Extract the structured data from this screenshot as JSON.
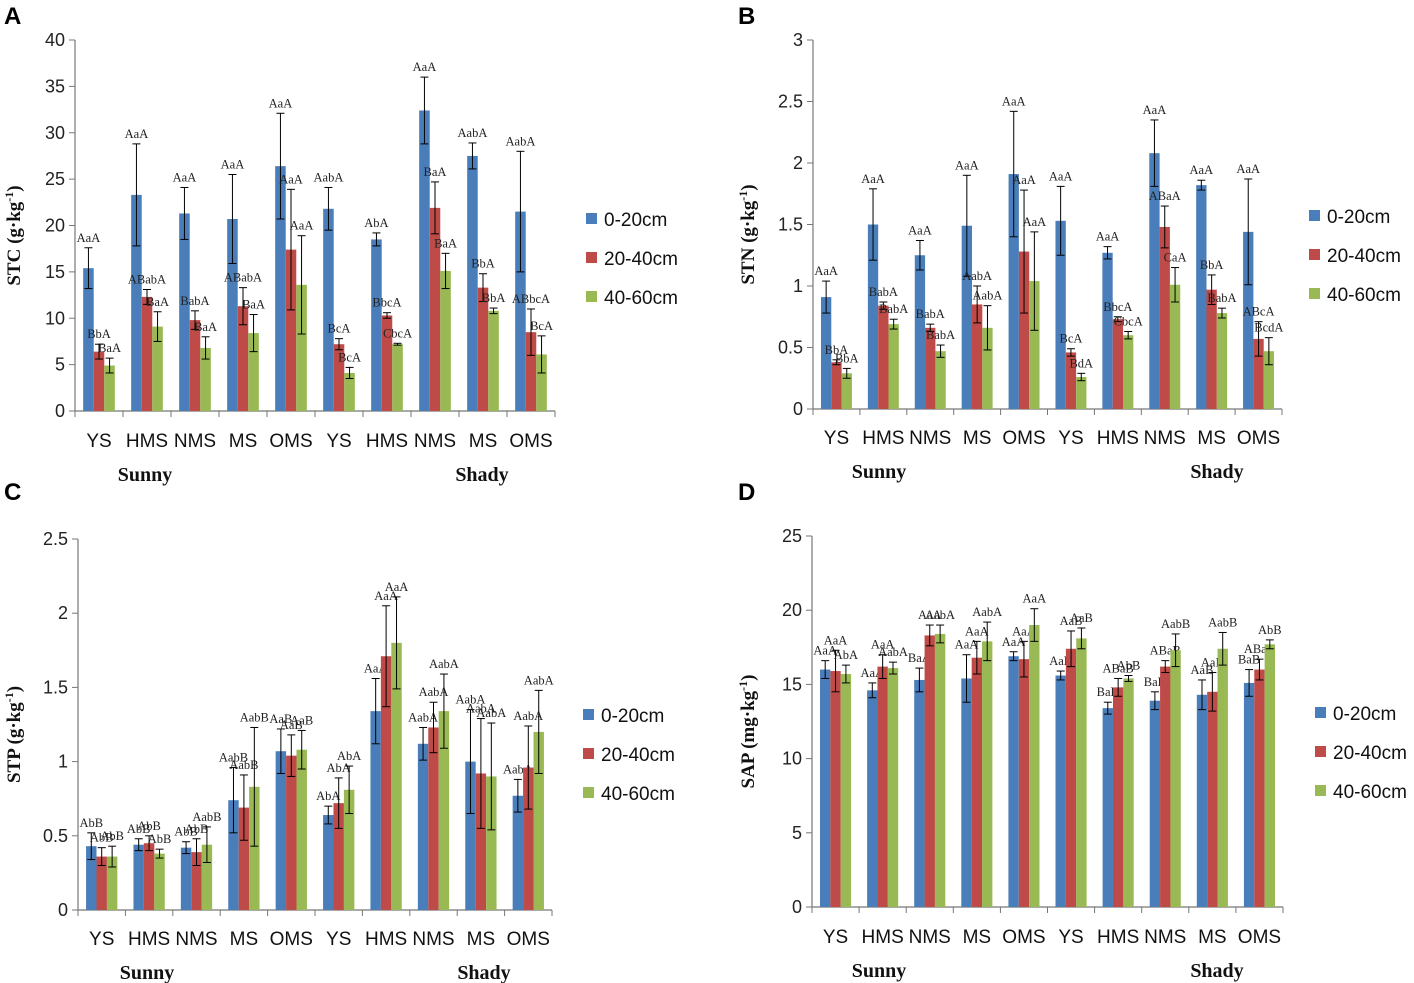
{
  "figure": {
    "categories": [
      "YS",
      "HMS",
      "NMS",
      "MS",
      "OMS",
      "YS",
      "HMS",
      "NMS",
      "MS",
      "OMS"
    ],
    "groups": [
      "Sunny",
      "Shady"
    ],
    "series_names": [
      "0-20cm",
      "20-40cm",
      "40-60cm"
    ],
    "colors": {
      "s0": "#4a7ebb",
      "s1": "#be4b48",
      "s2": "#98b954"
    }
  },
  "chart_data": [
    {
      "panel": "A",
      "type": "bar",
      "ylabel": "STC (g·kg",
      "ylabel_sup": "-1",
      "ylabel_close": ")",
      "ylim": [
        0,
        40
      ],
      "yticks": [
        "0",
        "5",
        "10",
        "15",
        "20",
        "25",
        "30",
        "35",
        "40"
      ],
      "categories": [
        "YS",
        "HMS",
        "NMS",
        "MS",
        "OMS",
        "YS",
        "HMS",
        "NMS",
        "MS",
        "OMS"
      ],
      "groups": [
        "Sunny",
        "Shady"
      ],
      "series": [
        {
          "name": "0-20cm",
          "values": [
            15.4,
            23.3,
            21.3,
            20.7,
            26.4,
            21.8,
            18.5,
            32.4,
            27.5,
            21.5
          ],
          "errors": [
            2.2,
            5.5,
            2.8,
            4.8,
            5.7,
            2.3,
            0.7,
            3.6,
            1.4,
            6.5
          ],
          "labels": [
            "AaA",
            "AaA",
            "AaA",
            "AaA",
            "AaA",
            "AabA",
            "AbA",
            "AaA",
            "AabA",
            "AabA"
          ]
        },
        {
          "name": "20-40cm",
          "values": [
            6.4,
            12.3,
            9.8,
            11.3,
            17.4,
            7.2,
            10.3,
            21.9,
            13.3,
            8.5
          ],
          "errors": [
            0.8,
            0.8,
            1.0,
            2.0,
            6.5,
            0.6,
            0.3,
            2.8,
            1.5,
            2.5
          ],
          "labels": [
            "BbA",
            "ABabA",
            "BabA",
            "ABabA",
            "AaA",
            "BcA",
            "BbcA",
            "BaA",
            "BbA",
            "ABbcA"
          ]
        },
        {
          "name": "40-60cm",
          "values": [
            4.9,
            9.1,
            6.8,
            8.4,
            13.6,
            4.1,
            7.2,
            15.1,
            10.8,
            6.1
          ],
          "errors": [
            0.8,
            1.6,
            1.2,
            2.0,
            5.3,
            0.6,
            0.1,
            1.9,
            0.3,
            2.0
          ],
          "labels": [
            "BaA",
            "BaA",
            "BaA",
            "BaA",
            "AaA",
            "BcA",
            "CbcA",
            "BaA",
            "BbA",
            "BcA"
          ]
        }
      ]
    },
    {
      "panel": "B",
      "type": "bar",
      "ylabel": "STN (g·kg",
      "ylabel_sup": "-1",
      "ylabel_close": ")",
      "ylim": [
        0,
        3
      ],
      "yticks": [
        "0",
        "0.5",
        "1",
        "1.5",
        "2",
        "2.5",
        "3"
      ],
      "categories": [
        "YS",
        "HMS",
        "NMS",
        "MS",
        "OMS",
        "YS",
        "HMS",
        "NMS",
        "MS",
        "OMS"
      ],
      "groups": [
        "Sunny",
        "Shady"
      ],
      "series": [
        {
          "name": "0-20cm",
          "values": [
            0.91,
            1.5,
            1.25,
            1.49,
            1.91,
            1.53,
            1.27,
            2.08,
            1.82,
            1.44
          ],
          "errors": [
            0.13,
            0.29,
            0.12,
            0.41,
            0.51,
            0.28,
            0.05,
            0.27,
            0.04,
            0.43
          ],
          "labels": [
            "AaA",
            "AaA",
            "AaA",
            "AaA",
            "AaA",
            "AaA",
            "AaA",
            "AaA",
            "AaA",
            "AaA"
          ]
        },
        {
          "name": "20-40cm",
          "values": [
            0.38,
            0.84,
            0.66,
            0.85,
            1.28,
            0.46,
            0.73,
            1.48,
            0.97,
            0.57
          ],
          "errors": [
            0.02,
            0.03,
            0.03,
            0.15,
            0.5,
            0.03,
            0.02,
            0.17,
            0.12,
            0.14
          ],
          "labels": [
            "BbA",
            "BabA",
            "BabA",
            "AabA",
            "AaA",
            "BcA",
            "BbcA",
            "ABaA",
            "BbA",
            "ABcA"
          ]
        },
        {
          "name": "40-60cm",
          "values": [
            0.29,
            0.69,
            0.47,
            0.66,
            1.04,
            0.26,
            0.6,
            1.01,
            0.78,
            0.47
          ],
          "errors": [
            0.04,
            0.04,
            0.05,
            0.18,
            0.4,
            0.03,
            0.03,
            0.14,
            0.04,
            0.11
          ],
          "labels": [
            "BbA",
            "BabA",
            "BabA",
            "AabA",
            "AaA",
            "BdA",
            "CbcA",
            "CaA",
            "BabA",
            "BcdA"
          ]
        }
      ]
    },
    {
      "panel": "C",
      "type": "bar",
      "ylabel": "STP (g·kg",
      "ylabel_sup": "-1",
      "ylabel_close": ")",
      "ylim": [
        0,
        2.5
      ],
      "yticks": [
        "0",
        "0.5",
        "1",
        "1.5",
        "2",
        "2.5"
      ],
      "categories": [
        "YS",
        "HMS",
        "NMS",
        "MS",
        "OMS",
        "YS",
        "HMS",
        "NMS",
        "MS",
        "OMS"
      ],
      "groups": [
        "Sunny",
        "Shady"
      ],
      "series": [
        {
          "name": "0-20cm",
          "values": [
            0.43,
            0.44,
            0.42,
            0.74,
            1.07,
            0.64,
            1.34,
            1.12,
            1.0,
            0.77
          ],
          "errors": [
            0.09,
            0.04,
            0.04,
            0.22,
            0.15,
            0.06,
            0.22,
            0.11,
            0.35,
            0.11
          ],
          "labels": [
            "AbB",
            "AbB",
            "AbB",
            "AabB",
            "AaB",
            "AbA",
            "AaA",
            "AabA",
            "AabA",
            "AabA"
          ]
        },
        {
          "name": "20-40cm",
          "values": [
            0.36,
            0.45,
            0.39,
            0.69,
            1.04,
            0.72,
            1.71,
            1.23,
            0.92,
            0.96
          ],
          "errors": [
            0.06,
            0.05,
            0.09,
            0.22,
            0.14,
            0.17,
            0.34,
            0.17,
            0.37,
            0.28
          ],
          "labels": [
            "AbB",
            "AbB",
            "AbB",
            "AabB",
            "AaB",
            "AbA",
            "AaA",
            "AabA",
            "AabA",
            "AabA"
          ]
        },
        {
          "name": "40-60cm",
          "values": [
            0.36,
            0.38,
            0.44,
            0.83,
            1.08,
            0.81,
            1.8,
            1.34,
            0.9,
            1.2
          ],
          "errors": [
            0.07,
            0.03,
            0.12,
            0.4,
            0.13,
            0.16,
            0.31,
            0.25,
            0.36,
            0.28
          ],
          "labels": [
            "AbB",
            "AbB",
            "AabB",
            "AabB",
            "AaB",
            "AbA",
            "AaA",
            "AabA",
            "AabA",
            "AabA"
          ]
        }
      ]
    },
    {
      "panel": "D",
      "type": "bar",
      "ylabel": "SAP (mg·kg",
      "ylabel_sup": "-1",
      "ylabel_close": ")",
      "ylim": [
        0,
        25
      ],
      "yticks": [
        "0",
        "5",
        "10",
        "15",
        "20",
        "25"
      ],
      "categories": [
        "YS",
        "HMS",
        "NMS",
        "MS",
        "OMS",
        "YS",
        "HMS",
        "NMS",
        "MS",
        "OMS"
      ],
      "groups": [
        "Sunny",
        "Shady"
      ],
      "series": [
        {
          "name": "0-20cm",
          "values": [
            16.0,
            14.6,
            15.3,
            15.4,
            16.9,
            15.6,
            13.4,
            13.9,
            14.3,
            15.1
          ],
          "errors": [
            0.6,
            0.5,
            0.8,
            1.6,
            0.3,
            0.3,
            0.4,
            0.6,
            1.0,
            0.9
          ],
          "labels": [
            "AaA",
            "AaA",
            "BaA",
            "AaA",
            "AaA",
            "AaB",
            "BaB",
            "BaB",
            "AaB",
            "BaB"
          ]
        },
        {
          "name": "20-40cm",
          "values": [
            15.9,
            16.2,
            18.3,
            16.8,
            16.7,
            17.4,
            14.8,
            16.2,
            14.5,
            16.0
          ],
          "errors": [
            1.4,
            0.8,
            0.7,
            1.1,
            1.2,
            1.2,
            0.6,
            0.4,
            1.3,
            0.7
          ],
          "labels": [
            "AaA",
            "AaA",
            "AaA",
            "AaA",
            "AaA",
            "AaB",
            "ABaB",
            "ABaB",
            "AaB",
            "ABaB"
          ]
        },
        {
          "name": "40-60cm",
          "values": [
            15.7,
            16.1,
            18.4,
            17.9,
            19.0,
            18.1,
            15.4,
            17.3,
            17.4,
            17.7
          ],
          "errors": [
            0.6,
            0.4,
            0.6,
            1.3,
            1.1,
            0.7,
            0.2,
            1.1,
            1.1,
            0.3
          ],
          "labels": [
            "AbA",
            "AabA",
            "AabA",
            "AabA",
            "AaA",
            "AaB",
            "AbB",
            "AabB",
            "AabB",
            "AbB"
          ]
        }
      ]
    }
  ]
}
